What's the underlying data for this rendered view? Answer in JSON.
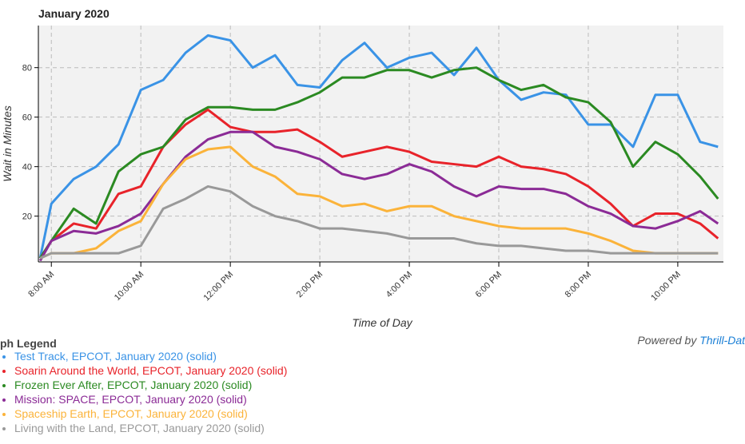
{
  "chart_data": {
    "type": "line",
    "title": "January 2020",
    "x_label": "Time of Day",
    "y_label": "Wait in Minutes",
    "x": [
      7.75,
      8.0,
      8.5,
      9.0,
      9.5,
      10.0,
      10.5,
      11.0,
      11.5,
      12.0,
      12.5,
      13.0,
      13.5,
      14.0,
      14.5,
      15.0,
      15.5,
      16.0,
      16.5,
      17.0,
      17.5,
      18.0,
      18.5,
      19.0,
      19.5,
      20.0,
      20.5,
      21.0,
      21.5,
      22.0,
      22.5,
      22.9
    ],
    "xlim": [
      7.71,
      23.02
    ],
    "xticks": [
      {
        "value": 8,
        "label": "8:00 AM"
      },
      {
        "value": 10,
        "label": "10:00 AM"
      },
      {
        "value": 12,
        "label": "12:00 PM"
      },
      {
        "value": 14,
        "label": "2:00 PM"
      },
      {
        "value": 16,
        "label": "4:00 PM"
      },
      {
        "value": 18,
        "label": "6:00 PM"
      },
      {
        "value": 20,
        "label": "8:00 PM"
      },
      {
        "value": 22,
        "label": "10:00 PM"
      }
    ],
    "ylim": [
      1.5,
      97
    ],
    "yticks": [
      20,
      40,
      60,
      80
    ],
    "grid": true,
    "series": [
      {
        "name": "Test Track, EPCOT, January 2020 (solid)",
        "color": "#3a93e6",
        "values": [
          3,
          25,
          35,
          40,
          49,
          71,
          75,
          86,
          93,
          91,
          80,
          85,
          73,
          72,
          83,
          90,
          80,
          84,
          86,
          77,
          88,
          75,
          67,
          70,
          69,
          57,
          57,
          48,
          69,
          69,
          50,
          48
        ]
      },
      {
        "name": "Soarin Around the World, EPCOT, January 2020 (solid)",
        "color": "#e8232a",
        "values": [
          3,
          10,
          17,
          15,
          29,
          32,
          48,
          57,
          63,
          56,
          54,
          54,
          55,
          50,
          44,
          46,
          48,
          46,
          42,
          41,
          40,
          44,
          40,
          39,
          37,
          32,
          25,
          16,
          21,
          21,
          17,
          11
        ]
      },
      {
        "name": "Frozen Ever After, EPCOT, January 2020 (solid)",
        "color": "#2b8a22",
        "values": [
          3,
          10,
          23,
          17,
          38,
          45,
          48,
          59,
          64,
          64,
          63,
          63,
          66,
          70,
          76,
          76,
          79,
          79,
          76,
          79,
          80,
          75,
          71,
          73,
          68,
          66,
          58,
          40,
          50,
          45,
          36,
          27
        ]
      },
      {
        "name": "Mission: SPACE, EPCOT, January 2020 (solid)",
        "color": "#8b2b96",
        "values": [
          2,
          10,
          14,
          13,
          16,
          21,
          33,
          44,
          51,
          54,
          54,
          48,
          46,
          43,
          37,
          35,
          37,
          41,
          38,
          32,
          28,
          32,
          31,
          31,
          29,
          24,
          21,
          16,
          15,
          18,
          22,
          17
        ]
      },
      {
        "name": "Spaceship Earth, EPCOT, January 2020 (solid)",
        "color": "#fbb33a",
        "values": [
          3,
          5,
          5,
          7,
          14,
          18,
          33,
          43,
          47,
          48,
          40,
          36,
          29,
          28,
          24,
          25,
          22,
          24,
          24,
          20,
          18,
          16,
          15,
          15,
          15,
          13,
          10,
          6,
          5,
          5,
          5,
          5
        ]
      },
      {
        "name": "Living with the Land, EPCOT, January 2020 (solid)",
        "color": "#999999",
        "values": [
          3,
          5,
          5,
          5,
          5,
          8,
          23,
          27,
          32,
          30,
          24,
          20,
          18,
          15,
          15,
          14,
          13,
          11,
          11,
          11,
          9,
          8,
          8,
          7,
          6,
          6,
          5,
          5,
          5,
          5,
          5,
          5
        ]
      }
    ],
    "legend_title": "ph Legend",
    "footer": {
      "text": "Powered by",
      "link": "Thrill-Dat"
    }
  }
}
